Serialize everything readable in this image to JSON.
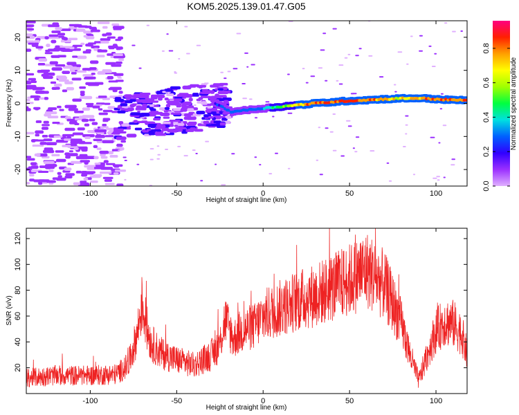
{
  "figure": {
    "title": "KOM5.2025.139.01.47.G05"
  },
  "chart_data": [
    {
      "type": "heatmap",
      "xlabel": "Height of straight line (km)",
      "ylabel": "Frequency (Hz)",
      "xlim": [
        -137,
        118
      ],
      "ylim": [
        -25,
        25
      ],
      "xticks": [
        -100,
        -50,
        0,
        50,
        100
      ],
      "yticks": [
        -20,
        -10,
        0,
        10,
        20
      ],
      "colorbar": {
        "label": "Normalized spectral amplitude",
        "range": [
          0,
          0.96
        ],
        "ticks": [
          0.0,
          0.2,
          0.4,
          0.6,
          0.8
        ],
        "colormap": [
          "#e0b0ff",
          "#9b30ff",
          "#3000ff",
          "#0060ff",
          "#00e0e0",
          "#00ff40",
          "#a0ff00",
          "#ffff00",
          "#ffa000",
          "#ff2000",
          "#ff0080"
        ]
      },
      "signal_track": [
        {
          "x": -27,
          "y": 0.0,
          "amp": 0.25
        },
        {
          "x": -18,
          "y": -2.5,
          "amp": 0.3
        },
        {
          "x": 0,
          "y": -1.5,
          "amp": 0.35
        },
        {
          "x": 10,
          "y": -1.0,
          "amp": 0.5
        },
        {
          "x": 20,
          "y": -0.5,
          "amp": 0.7
        },
        {
          "x": 30,
          "y": 0.0,
          "amp": 0.85
        },
        {
          "x": 40,
          "y": 0.4,
          "amp": 0.9
        },
        {
          "x": 50,
          "y": 0.8,
          "amp": 0.9
        },
        {
          "x": 60,
          "y": 1.0,
          "amp": 0.85
        },
        {
          "x": 70,
          "y": 1.3,
          "amp": 0.75
        },
        {
          "x": 80,
          "y": 1.5,
          "amp": 0.7
        },
        {
          "x": 90,
          "y": 1.6,
          "amp": 0.8
        },
        {
          "x": 100,
          "y": 1.3,
          "amp": 0.85
        },
        {
          "x": 110,
          "y": 1.0,
          "amp": 0.85
        },
        {
          "x": 118,
          "y": 1.0,
          "amp": 0.8
        }
      ]
    },
    {
      "type": "line",
      "xlabel": "Height of straight line (km)",
      "ylabel": "SNR (v/v)",
      "xlim": [
        -137,
        118
      ],
      "ylim": [
        0,
        128
      ],
      "xticks": [
        -100,
        -50,
        0,
        50,
        100
      ],
      "yticks": [
        20,
        40,
        60,
        80,
        100,
        120
      ],
      "series": [
        {
          "color": "#ee2222",
          "x": [
            -137,
            -120,
            -100,
            -85,
            -78,
            -73,
            -70,
            -68,
            -65,
            -60,
            -50,
            -40,
            -30,
            -25,
            -22,
            -19,
            -17,
            -15,
            -10,
            -5,
            0,
            10,
            20,
            30,
            40,
            50,
            55,
            60,
            65,
            70,
            75,
            80,
            85,
            88,
            90,
            93,
            97,
            100,
            105,
            110,
            115,
            118
          ],
          "values": [
            12,
            14,
            14,
            15,
            22,
            45,
            70,
            55,
            40,
            32,
            26,
            22,
            30,
            38,
            58,
            48,
            42,
            46,
            50,
            52,
            60,
            66,
            72,
            76,
            82,
            88,
            92,
            96,
            90,
            84,
            70,
            54,
            30,
            18,
            10,
            22,
            38,
            48,
            56,
            54,
            46,
            30
          ]
        }
      ]
    }
  ]
}
